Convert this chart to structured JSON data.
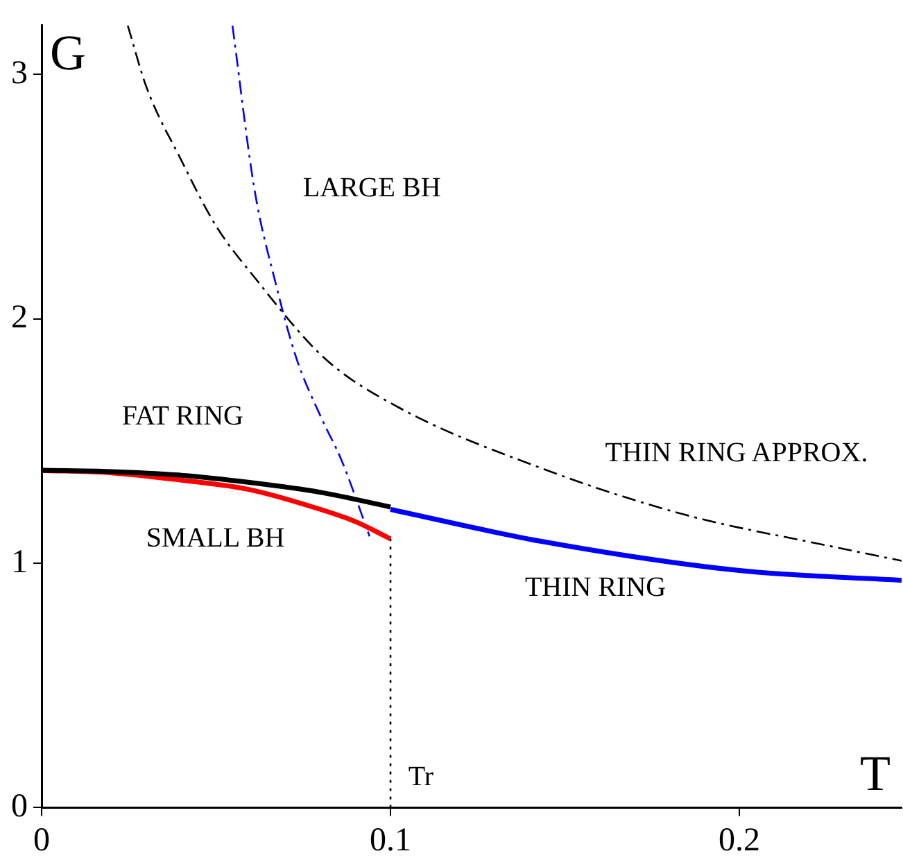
{
  "chart_data": {
    "type": "line",
    "xlabel": "T",
    "ylabel": "G",
    "xlim": [
      0,
      0.2465
    ],
    "ylim": [
      0,
      3.2
    ],
    "xticks": [
      0,
      0.1,
      0.2
    ],
    "yticks": [
      0,
      1,
      2,
      3
    ],
    "grid": false,
    "legend": false,
    "marker": "none",
    "series": [
      {
        "color": "#000000",
        "line_style": "solid",
        "x": [
          0,
          0.02,
          0.04,
          0.06,
          0.08,
          0.1
        ],
        "values": [
          1.38,
          1.375,
          1.36,
          1.33,
          1.29,
          1.23
        ]
      },
      {
        "color": "#ff0000",
        "line_style": "solid",
        "x": [
          0,
          0.02,
          0.04,
          0.06,
          0.08,
          0.09,
          0.1
        ],
        "values": [
          1.38,
          1.37,
          1.34,
          1.3,
          1.22,
          1.17,
          1.1
        ]
      },
      {
        "color": "#0000ff",
        "line_style": "solid",
        "x": [
          0.1,
          0.143,
          0.2,
          0.2465
        ],
        "values": [
          1.22,
          1.09,
          0.97,
          0.93
        ]
      },
      {
        "color": "#0000ff",
        "line_style": "dashed",
        "x": [
          0.0547,
          0.061,
          0.067,
          0.073,
          0.08,
          0.086,
          0.094
        ],
        "values": [
          3.2,
          2.53,
          2.15,
          1.84,
          1.6,
          1.42,
          1.11
        ]
      },
      {
        "color": "#000000",
        "line_style": "dashed",
        "x": [
          0.0247,
          0.03,
          0.04,
          0.05,
          0.061,
          0.081,
          0.102,
          0.143,
          0.184,
          0.226,
          0.2465
        ],
        "values": [
          3.2,
          2.95,
          2.65,
          2.38,
          2.17,
          1.84,
          1.64,
          1.39,
          1.2,
          1.07,
          1.01
        ]
      },
      {
        "color": "#000000",
        "line_style": "dotted",
        "x": [
          0.1,
          0.1
        ],
        "values": [
          0,
          1.1
        ]
      }
    ],
    "annotations": [
      "LARGE BH",
      "FAT RING",
      "THIN RING APPROX.",
      "SMALL BH",
      "THIN RING",
      "Tr"
    ]
  }
}
